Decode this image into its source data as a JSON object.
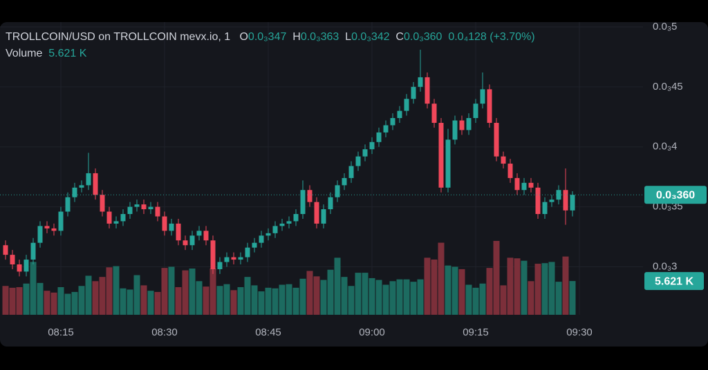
{
  "chart_data": {
    "type": "candlestick",
    "legend": {
      "symbol": "TROLLCOIN/USD on TROLLCOIN mevx.io, 1",
      "items": [
        {
          "key": "O",
          "value": "0.0₃347"
        },
        {
          "key": "H",
          "value": "0.0₃363"
        },
        {
          "key": "L",
          "value": "0.0₃342"
        },
        {
          "key": "C",
          "value": "0.0₃360"
        }
      ],
      "change": "0.0₄128",
      "change_pct": "(+3.70%)",
      "volume_label": "Volume",
      "volume_value": "5.621 K"
    },
    "x": [
      "08:07",
      "08:08",
      "08:09",
      "08:10",
      "08:11",
      "08:12",
      "08:13",
      "08:14",
      "08:15",
      "08:16",
      "08:17",
      "08:18",
      "08:19",
      "08:20",
      "08:21",
      "08:22",
      "08:23",
      "08:24",
      "08:25",
      "08:26",
      "08:27",
      "08:28",
      "08:29",
      "08:30",
      "08:31",
      "08:32",
      "08:33",
      "08:34",
      "08:35",
      "08:36",
      "08:37",
      "08:38",
      "08:39",
      "08:40",
      "08:41",
      "08:42",
      "08:43",
      "08:44",
      "08:45",
      "08:46",
      "08:47",
      "08:48",
      "08:49",
      "08:50",
      "08:51",
      "08:52",
      "08:53",
      "08:54",
      "08:55",
      "08:56",
      "08:57",
      "08:58",
      "08:59",
      "09:00",
      "09:01",
      "09:02",
      "09:03",
      "09:04",
      "09:05",
      "09:06",
      "09:07",
      "09:08",
      "09:09",
      "09:10",
      "09:11",
      "09:12",
      "09:13",
      "09:14",
      "09:15",
      "09:16",
      "09:17",
      "09:18",
      "09:19",
      "09:20",
      "09:21",
      "09:22",
      "09:23",
      "09:24",
      "09:25",
      "09:26",
      "09:27",
      "09:28",
      "09:29"
    ],
    "open": [
      0.000318,
      0.00031,
      0.000302,
      0.000296,
      0.000306,
      0.00032,
      0.000334,
      0.000332,
      0.00033,
      0.000346,
      0.000358,
      0.000366,
      0.000368,
      0.000378,
      0.00036,
      0.000346,
      0.000336,
      0.000338,
      0.000344,
      0.00035,
      0.000352,
      0.000348,
      0.00035,
      0.000342,
      0.00033,
      0.000336,
      0.000322,
      0.000318,
      0.000326,
      0.00033,
      0.000322,
      0.000298,
      0.000304,
      0.000308,
      0.000306,
      0.000308,
      0.000316,
      0.00032,
      0.000326,
      0.000328,
      0.000334,
      0.000336,
      0.000338,
      0.000344,
      0.000364,
      0.000354,
      0.000336,
      0.000348,
      0.000358,
      0.000368,
      0.000374,
      0.000384,
      0.000392,
      0.000398,
      0.000404,
      0.000412,
      0.000418,
      0.000424,
      0.00043,
      0.00044,
      0.00045,
      0.000458,
      0.000436,
      0.00042,
      0.000366,
      0.000406,
      0.000422,
      0.000414,
      0.000424,
      0.000436,
      0.000448,
      0.00042,
      0.000392,
      0.000386,
      0.000374,
      0.000364,
      0.00037,
      0.000366,
      0.000344,
      0.000354,
      0.000356,
      0.000364,
      0.000347
    ],
    "high": [
      0.000322,
      0.000314,
      0.000306,
      0.00031,
      0.000324,
      0.000338,
      0.000338,
      0.000336,
      0.00035,
      0.000362,
      0.00037,
      0.000372,
      0.000395,
      0.000382,
      0.000364,
      0.00035,
      0.000342,
      0.000348,
      0.000354,
      0.000356,
      0.000356,
      0.000354,
      0.000354,
      0.000346,
      0.00034,
      0.00034,
      0.000326,
      0.00033,
      0.000334,
      0.000334,
      0.000326,
      0.000308,
      0.000312,
      0.000312,
      0.000312,
      0.00032,
      0.000324,
      0.00033,
      0.000332,
      0.000338,
      0.00034,
      0.000342,
      0.000348,
      0.000372,
      0.000368,
      0.000358,
      0.000352,
      0.000362,
      0.000372,
      0.000378,
      0.000388,
      0.000396,
      0.000402,
      0.000408,
      0.000416,
      0.000422,
      0.000428,
      0.000434,
      0.000444,
      0.000454,
      0.000481,
      0.000462,
      0.00044,
      0.000424,
      0.000415,
      0.000426,
      0.000426,
      0.000428,
      0.00044,
      0.000462,
      0.000452,
      0.000424,
      0.000396,
      0.00039,
      0.000378,
      0.000374,
      0.000374,
      0.00037,
      0.000358,
      0.00036,
      0.000368,
      0.000382,
      0.000363
    ],
    "low": [
      0.000306,
      0.000298,
      0.000292,
      0.000292,
      0.000302,
      0.000316,
      0.000328,
      0.000326,
      0.000326,
      0.000342,
      0.000354,
      0.000362,
      0.000364,
      0.000356,
      0.000342,
      0.000332,
      0.000332,
      0.000334,
      0.00034,
      0.000346,
      0.000344,
      0.000344,
      0.000338,
      0.000326,
      0.000326,
      0.000318,
      0.000314,
      0.000314,
      0.000322,
      0.000318,
      0.000294,
      0.000294,
      0.0003,
      0.000302,
      0.000302,
      0.000304,
      0.000312,
      0.000316,
      0.000322,
      0.000324,
      0.00033,
      0.000332,
      0.000334,
      0.00034,
      0.00035,
      0.000332,
      0.000332,
      0.000344,
      0.000354,
      0.000364,
      0.00037,
      0.00038,
      0.000388,
      0.000394,
      0.0004,
      0.000408,
      0.000414,
      0.00042,
      0.000426,
      0.000436,
      0.000446,
      0.000432,
      0.000416,
      0.000362,
      0.000362,
      0.000402,
      0.00041,
      0.00041,
      0.00042,
      0.000432,
      0.000416,
      0.000388,
      0.000382,
      0.00037,
      0.00036,
      0.00036,
      0.000362,
      0.00034,
      0.00034,
      0.00035,
      0.000352,
      0.000335,
      0.000342
    ],
    "close": [
      0.00031,
      0.000302,
      0.000296,
      0.000306,
      0.00032,
      0.000334,
      0.000332,
      0.00033,
      0.000346,
      0.000358,
      0.000366,
      0.000368,
      0.000378,
      0.00036,
      0.000346,
      0.000336,
      0.000338,
      0.000344,
      0.00035,
      0.000352,
      0.000348,
      0.00035,
      0.000342,
      0.00033,
      0.000336,
      0.000322,
      0.000318,
      0.000326,
      0.00033,
      0.000322,
      0.000298,
      0.000304,
      0.000308,
      0.000306,
      0.000308,
      0.000316,
      0.00032,
      0.000326,
      0.000328,
      0.000334,
      0.000336,
      0.000338,
      0.000344,
      0.000364,
      0.000354,
      0.000336,
      0.000348,
      0.000358,
      0.000368,
      0.000374,
      0.000384,
      0.000392,
      0.000398,
      0.000404,
      0.000412,
      0.000418,
      0.000424,
      0.00043,
      0.00044,
      0.00045,
      0.000458,
      0.000436,
      0.00042,
      0.000366,
      0.000406,
      0.000422,
      0.000414,
      0.000424,
      0.000436,
      0.000448,
      0.00042,
      0.000392,
      0.000386,
      0.000374,
      0.000364,
      0.00037,
      0.000366,
      0.000344,
      0.000354,
      0.000356,
      0.000364,
      0.000347,
      0.00036
    ],
    "volume": [
      4.8,
      4.5,
      4.6,
      5.2,
      8.8,
      5.3,
      4.0,
      3.7,
      4.6,
      3.5,
      3.8,
      4.8,
      6.5,
      5.6,
      6.3,
      7.9,
      8.1,
      4.4,
      4.2,
      6.6,
      4.9,
      4.0,
      3.8,
      7.8,
      8.0,
      4.6,
      7.4,
      7.7,
      5.6,
      4.7,
      7.7,
      4.8,
      5.1,
      4.1,
      4.6,
      6.3,
      4.9,
      3.9,
      4.5,
      4.4,
      5.0,
      5.1,
      4.5,
      6.0,
      7.3,
      6.4,
      5.8,
      7.5,
      9.5,
      6.3,
      4.8,
      7.0,
      7.0,
      6.1,
      5.8,
      5.0,
      5.6,
      5.9,
      5.9,
      5.5,
      5.9,
      9.5,
      9.2,
      12.0,
      8.2,
      8.0,
      7.6,
      5.0,
      4.5,
      5.2,
      7.8,
      12.3,
      4.9,
      9.5,
      9.4,
      9.0,
      5.6,
      8.5,
      8.6,
      8.8,
      5.5,
      9.7,
      5.621
    ],
    "up_color": "#26a69a",
    "down_color": "#f0475a",
    "volume_up_color": "#1c6b60",
    "volume_down_color": "#7c2f3a",
    "ylim": [
      0.00026,
      0.000504
    ],
    "yticks": [
      {
        "value": 0.0003,
        "label": "0.0₃3"
      },
      {
        "value": 0.00035,
        "label": "0.0₃35"
      },
      {
        "value": 0.0004,
        "label": "0.0₃4"
      },
      {
        "value": 0.00045,
        "label": "0.0₃45"
      },
      {
        "value": 0.0005,
        "label": "0.0₃5"
      }
    ],
    "xticks": [
      "08:15",
      "08:30",
      "08:45",
      "09:00",
      "09:15",
      "09:30"
    ],
    "grid": true
  }
}
